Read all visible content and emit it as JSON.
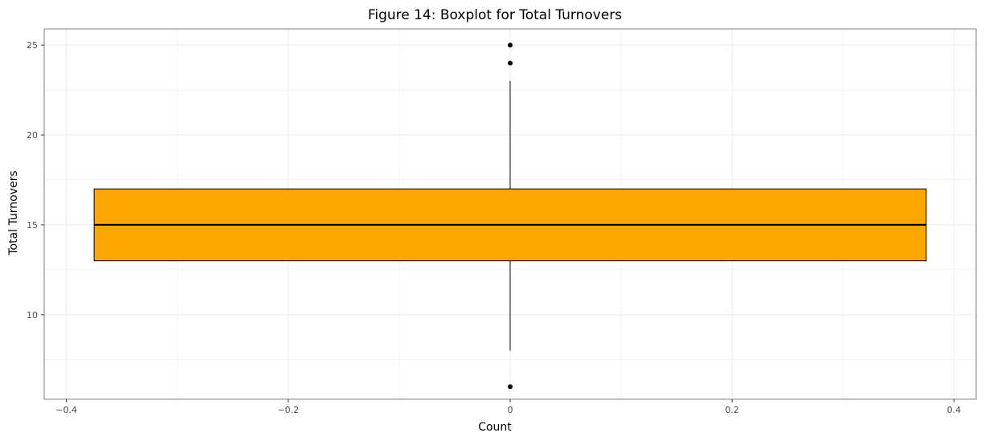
{
  "chart_data": {
    "type": "box",
    "title": "Figure 14: Boxplot for Total Turnovers",
    "xlabel": "Count",
    "ylabel": "Total Turnovers",
    "xlim": [
      -0.42,
      0.42
    ],
    "ylim": [
      5.3,
      25.9
    ],
    "x_ticks": [
      -0.4,
      -0.2,
      0,
      0.2,
      0.4
    ],
    "x_tick_labels": [
      "−0.4",
      "−0.2",
      "0",
      "0.2",
      "0.4"
    ],
    "y_ticks": [
      10,
      15,
      20,
      25
    ],
    "y_tick_labels": [
      "10",
      "15",
      "20",
      "25"
    ],
    "grid": true,
    "box": {
      "x": 0,
      "x_extent": [
        -0.375,
        0.375
      ],
      "q1": 13,
      "median": 15,
      "q3": 17,
      "whisker_low": 8,
      "whisker_high": 23,
      "outliers": [
        25,
        24,
        6
      ]
    },
    "colors": {
      "box_fill": "#ffa500",
      "box_edge": "#000000",
      "grid": "#ebebeb",
      "panel_border": "#7f7f7f"
    }
  }
}
